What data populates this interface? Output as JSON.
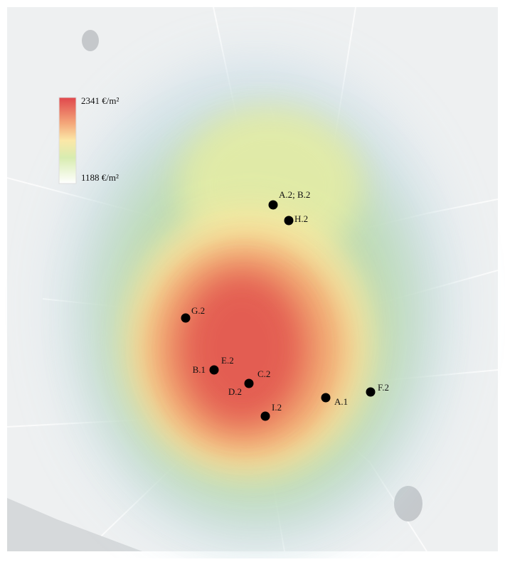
{
  "legend": {
    "max_label": "2341 €/m²",
    "min_label": "1188 €/m²"
  },
  "points": [
    {
      "labels": [
        "A.2; B.2"
      ]
    },
    {
      "labels": [
        "H.2"
      ]
    },
    {
      "labels": [
        "G.2"
      ]
    },
    {
      "labels": [
        "B.1",
        "E.2"
      ]
    },
    {
      "labels": [
        "C.2",
        "D.2"
      ]
    },
    {
      "labels": [
        "I.2"
      ]
    },
    {
      "labels": [
        "A.1"
      ]
    },
    {
      "labels": [
        "F.2"
      ]
    }
  ]
}
